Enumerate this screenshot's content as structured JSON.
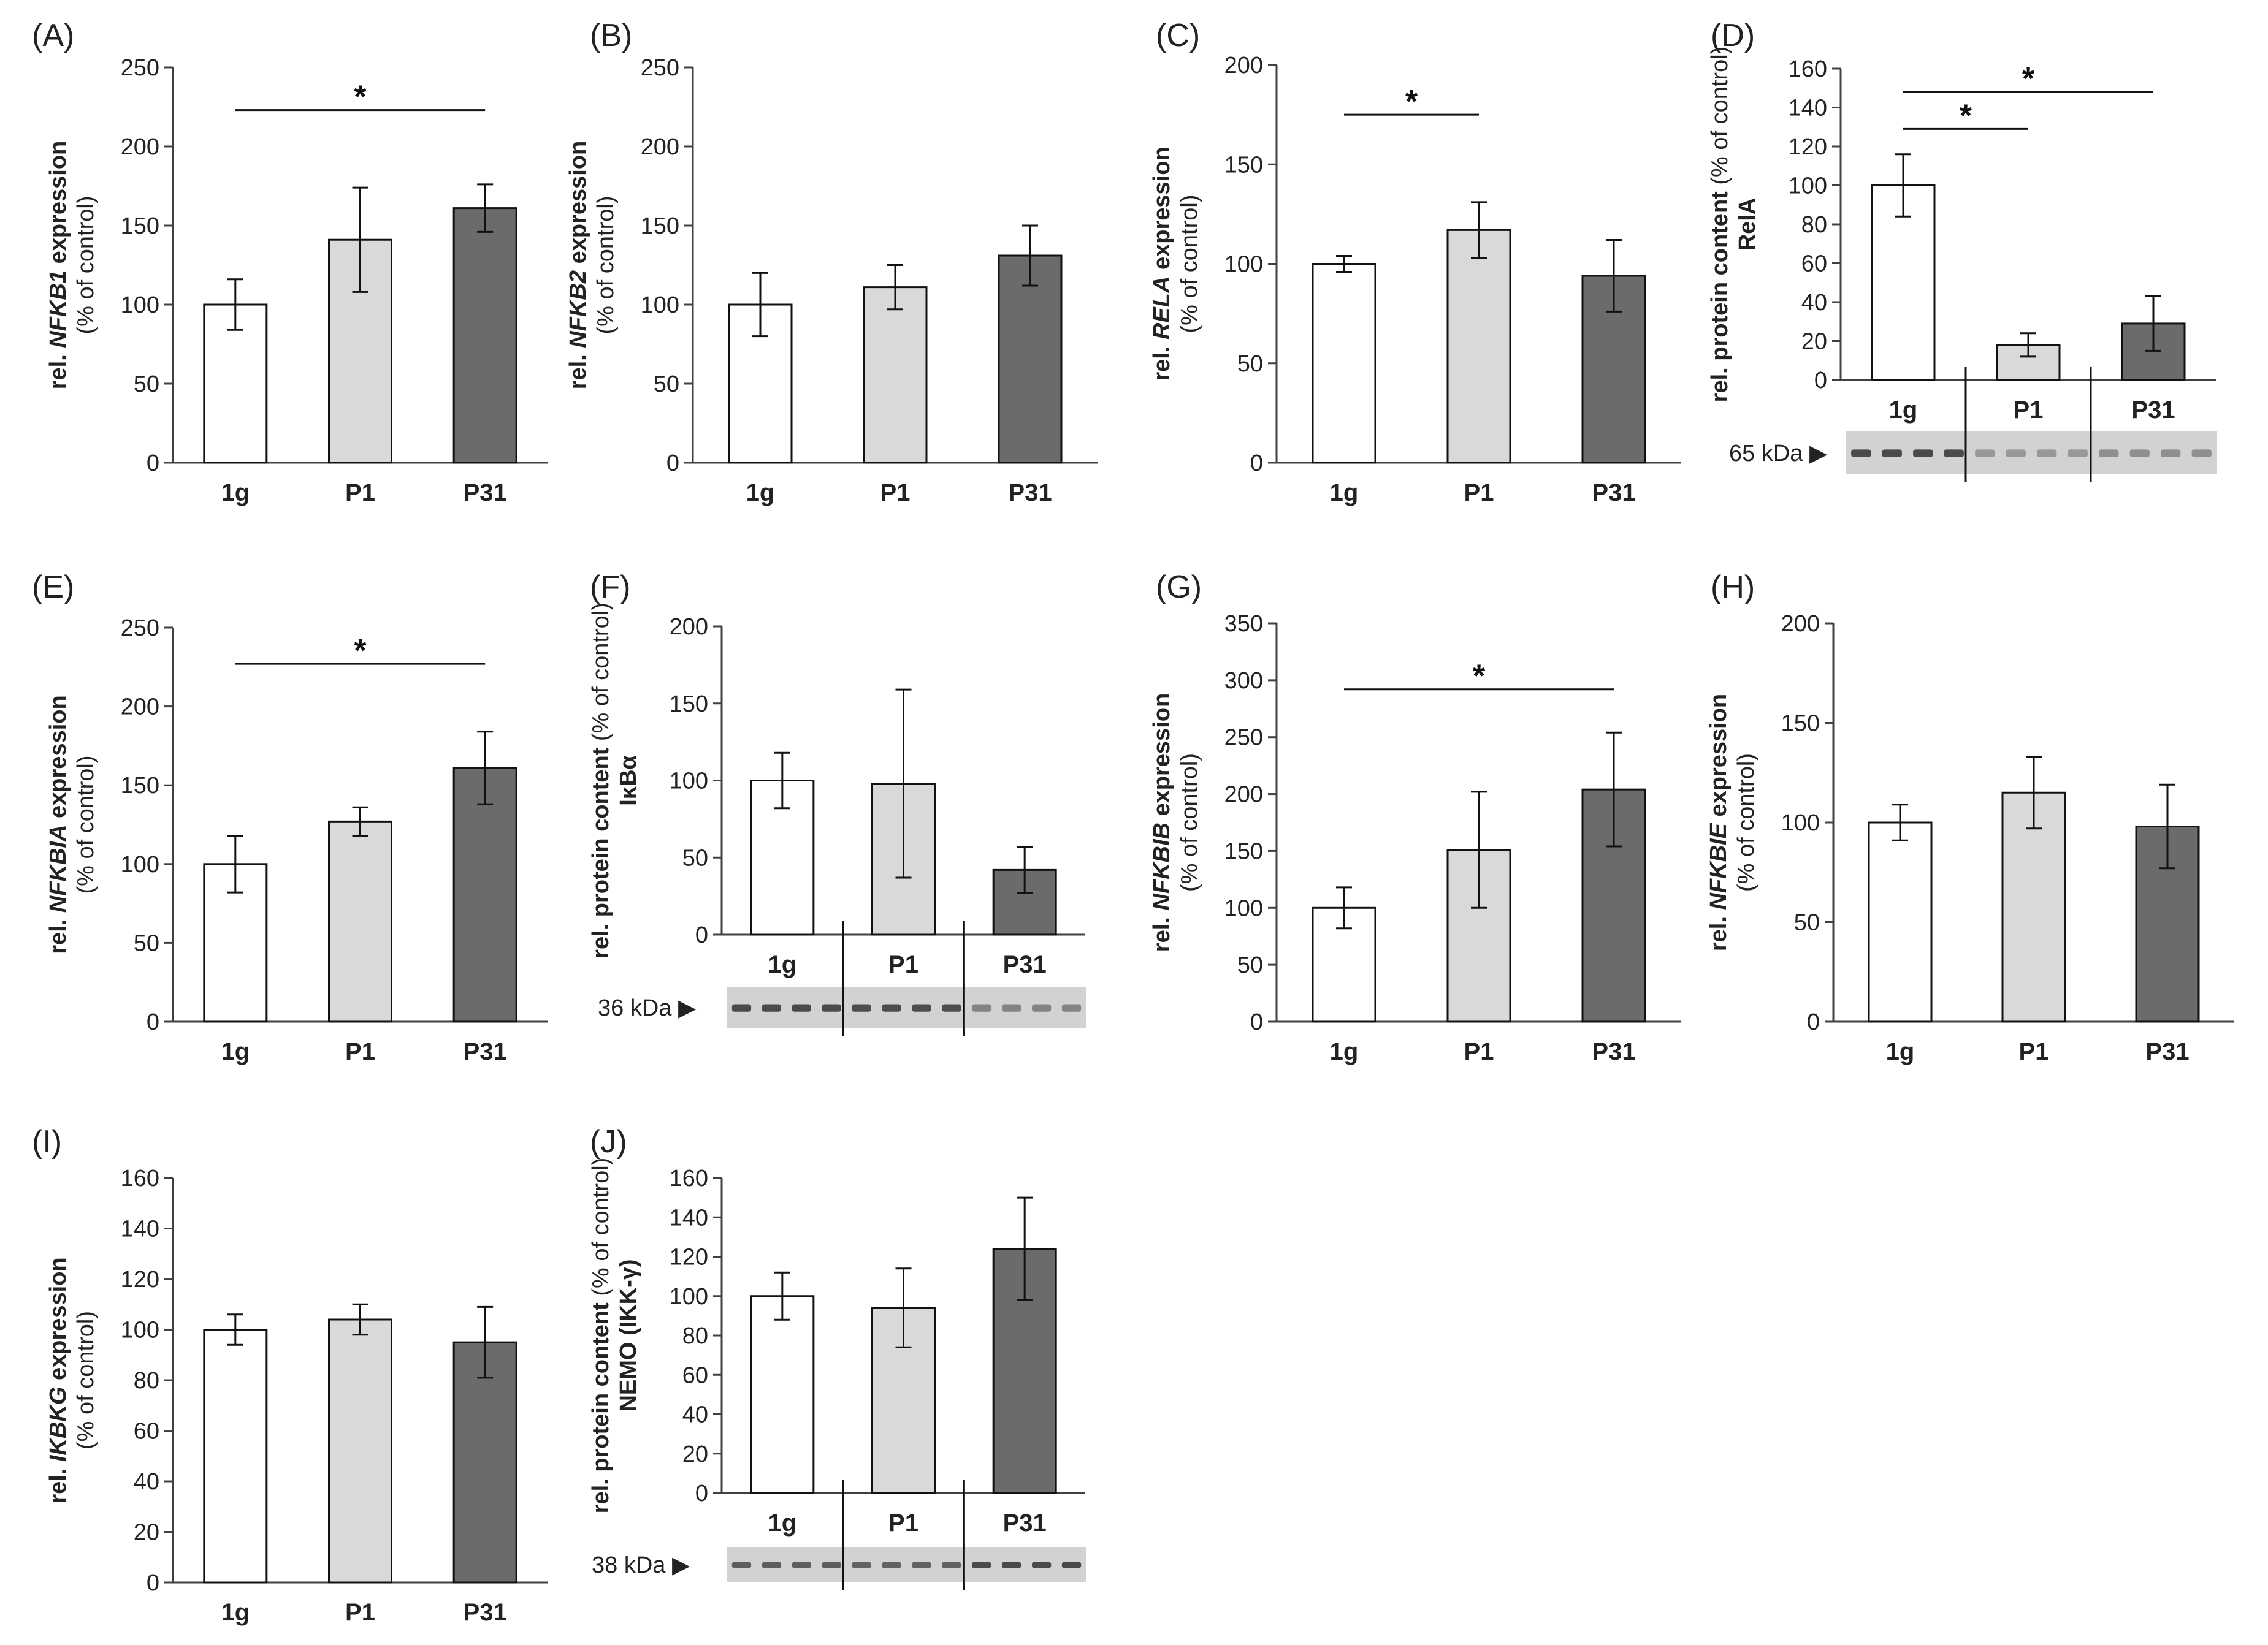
{
  "figure": {
    "colors": {
      "1g": "#ffffff",
      "P1": "#d9d9d9",
      "P31": "#6b6b6b",
      "axis": "#404040",
      "blot_bg": "#d2d2d2"
    }
  },
  "chart_data": [
    {
      "panel": "(A)",
      "type": "bar",
      "ylabel_prefix": "rel. ",
      "ylabel_gene": "NFKB1",
      "ylabel_suffix": " expression",
      "ylabel_line2": "(% of control)",
      "categories": [
        "1g",
        "P1",
        "P31"
      ],
      "values": [
        100,
        141,
        161
      ],
      "errors": [
        16,
        33,
        15
      ],
      "ylim": [
        0,
        250
      ],
      "yticks": [
        0,
        50,
        100,
        150,
        200,
        250
      ],
      "significance": [
        {
          "from": 0,
          "to": 2,
          "y": 223,
          "label": "*"
        }
      ]
    },
    {
      "panel": "(B)",
      "type": "bar",
      "ylabel_prefix": "rel. ",
      "ylabel_gene": "NFKB2",
      "ylabel_suffix": " expression",
      "ylabel_line2": "(% of control)",
      "categories": [
        "1g",
        "P1",
        "P31"
      ],
      "values": [
        100,
        111,
        131
      ],
      "errors": [
        20,
        14,
        19
      ],
      "ylim": [
        0,
        250
      ],
      "yticks": [
        0,
        50,
        100,
        150,
        200,
        250
      ],
      "significance": []
    },
    {
      "panel": "(C)",
      "type": "bar",
      "ylabel_prefix": "rel. ",
      "ylabel_gene": "RELA",
      "ylabel_suffix": " expression",
      "ylabel_line2": "(% of control)",
      "categories": [
        "1g",
        "P1",
        "P31"
      ],
      "values": [
        100,
        117,
        94
      ],
      "errors": [
        4,
        14,
        18
      ],
      "ylim": [
        0,
        200
      ],
      "yticks": [
        0,
        50,
        100,
        150,
        200
      ],
      "significance": [
        {
          "from": 0,
          "to": 1,
          "y": 175,
          "label": "*"
        }
      ]
    },
    {
      "panel": "(D)",
      "type": "bar",
      "ylabel_line1": "rel. protein content",
      "ylabel_line2": "(% of control)",
      "ylabel_line3": "RelA",
      "categories": [
        "1g",
        "P1",
        "P31"
      ],
      "values": [
        100,
        18,
        29
      ],
      "errors": [
        16,
        6,
        14
      ],
      "ylim": [
        0,
        160
      ],
      "yticks": [
        0,
        20,
        40,
        60,
        80,
        100,
        120,
        140,
        160
      ],
      "significance": [
        {
          "from": 0,
          "to": 1,
          "y": 129,
          "label": "*"
        },
        {
          "from": 0,
          "to": 2,
          "y": 148,
          "label": "*"
        }
      ],
      "blot_label": "65 kDa ▶"
    },
    {
      "panel": "(E)",
      "type": "bar",
      "ylabel_prefix": "rel. ",
      "ylabel_gene": "NFKBIA",
      "ylabel_suffix": " expression",
      "ylabel_line2": "(% of control)",
      "categories": [
        "1g",
        "P1",
        "P31"
      ],
      "values": [
        100,
        127,
        161
      ],
      "errors": [
        18,
        9,
        23
      ],
      "ylim": [
        0,
        250
      ],
      "yticks": [
        0,
        50,
        100,
        150,
        200,
        250
      ],
      "significance": [
        {
          "from": 0,
          "to": 2,
          "y": 227,
          "label": "*"
        }
      ]
    },
    {
      "panel": "(F)",
      "type": "bar",
      "ylabel_line1": "rel. protein content",
      "ylabel_line2": "(% of control)",
      "ylabel_line3": "IκBα",
      "categories": [
        "1g",
        "P1",
        "P31"
      ],
      "values": [
        100,
        98,
        42
      ],
      "errors": [
        18,
        61,
        15
      ],
      "ylim": [
        0,
        200
      ],
      "yticks": [
        0,
        50,
        100,
        150,
        200
      ],
      "significance": [],
      "blot_label": "36 kDa ▶"
    },
    {
      "panel": "(G)",
      "type": "bar",
      "ylabel_prefix": "rel. ",
      "ylabel_gene": "NFKBIB",
      "ylabel_suffix": " expression",
      "ylabel_line2": "(% of control)",
      "categories": [
        "1g",
        "P1",
        "P31"
      ],
      "values": [
        100,
        151,
        204
      ],
      "errors": [
        18,
        51,
        50
      ],
      "ylim": [
        0,
        350
      ],
      "yticks": [
        0,
        50,
        100,
        150,
        200,
        250,
        300,
        350
      ],
      "significance": [
        {
          "from": 0,
          "to": 2,
          "y": 292,
          "label": "*"
        }
      ]
    },
    {
      "panel": "(H)",
      "type": "bar",
      "ylabel_prefix": "rel. ",
      "ylabel_gene": "NFKBIE",
      "ylabel_suffix": " expression",
      "ylabel_line2": "(% of control)",
      "categories": [
        "1g",
        "P1",
        "P31"
      ],
      "values": [
        100,
        115,
        98
      ],
      "errors": [
        9,
        18,
        21
      ],
      "ylim": [
        0,
        200
      ],
      "yticks": [
        0,
        50,
        100,
        150,
        200
      ],
      "significance": []
    },
    {
      "panel": "(I)",
      "type": "bar",
      "ylabel_prefix": "rel. ",
      "ylabel_gene": "IKBKG",
      "ylabel_suffix": " expression",
      "ylabel_line2": "(% of control)",
      "categories": [
        "1g",
        "P1",
        "P31"
      ],
      "values": [
        100,
        104,
        95
      ],
      "errors": [
        6,
        6,
        14
      ],
      "ylim": [
        0,
        160
      ],
      "yticks": [
        0,
        20,
        40,
        60,
        80,
        100,
        120,
        140,
        160
      ],
      "significance": []
    },
    {
      "panel": "(J)",
      "type": "bar",
      "ylabel_line1": "rel. protein content",
      "ylabel_line2": "(% of control)",
      "ylabel_line3": "NEMO (IKK-γ)",
      "categories": [
        "1g",
        "P1",
        "P31"
      ],
      "values": [
        100,
        94,
        124
      ],
      "errors": [
        12,
        20,
        26
      ],
      "ylim": [
        0,
        160
      ],
      "yticks": [
        0,
        20,
        40,
        60,
        80,
        100,
        120,
        140,
        160
      ],
      "significance": [],
      "blot_label": "38 kDa ▶"
    }
  ]
}
